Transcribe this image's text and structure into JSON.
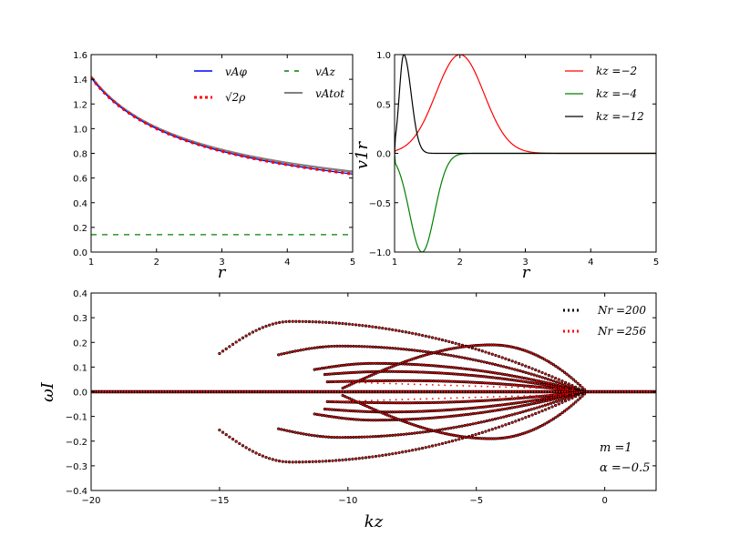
{
  "chart_data": [
    {
      "type": "line",
      "id": "top-left",
      "xlabel": "r",
      "ylabel": "",
      "xlim": [
        1,
        5
      ],
      "ylim": [
        0.0,
        1.6
      ],
      "xticks": [
        "1",
        "2",
        "3",
        "4",
        "5"
      ],
      "yticks": [
        "0.0",
        "0.2",
        "0.4",
        "0.6",
        "0.8",
        "1.0",
        "1.2",
        "1.4",
        "1.6"
      ],
      "legend_position": "top-right",
      "series": [
        {
          "name": "v_{Aφ}",
          "label": "vAφ",
          "color": "#0000ff",
          "style": "solid",
          "x": [
            1.0,
            1.25,
            1.5,
            2.0,
            2.5,
            3.0,
            3.5,
            4.0,
            4.5,
            5.0
          ],
          "y": [
            1.414,
            1.265,
            1.155,
            1.0,
            0.894,
            0.816,
            0.756,
            0.707,
            0.667,
            0.632
          ]
        },
        {
          "name": "sqrt(2ρ)",
          "label": "√2ρ",
          "color": "#ff0000",
          "style": "dotted",
          "x": [
            1.0,
            1.25,
            1.5,
            2.0,
            2.5,
            3.0,
            3.5,
            4.0,
            4.5,
            5.0
          ],
          "y": [
            1.414,
            1.265,
            1.155,
            1.0,
            0.894,
            0.816,
            0.756,
            0.707,
            0.667,
            0.632
          ]
        },
        {
          "name": "v_{Az}",
          "label": "vAz",
          "color": "#008000",
          "style": "dashed",
          "x": [
            1.0,
            5.0
          ],
          "y": [
            0.141,
            0.141
          ]
        },
        {
          "name": "v_{Atot}",
          "label": "vAtot",
          "color": "#808080",
          "style": "solid",
          "x": [
            1.0,
            1.25,
            1.5,
            2.0,
            2.5,
            3.0,
            3.5,
            4.0,
            4.5,
            5.0
          ],
          "y": [
            1.421,
            1.273,
            1.163,
            1.01,
            0.905,
            0.829,
            0.769,
            0.721,
            0.682,
            0.648
          ]
        }
      ]
    },
    {
      "type": "line",
      "id": "top-right",
      "xlabel": "r",
      "ylabel": "v1r",
      "xlim": [
        1,
        5
      ],
      "ylim": [
        -1.0,
        1.0
      ],
      "xticks": [
        "1",
        "2",
        "3",
        "4",
        "5"
      ],
      "yticks": [
        "−1.0",
        "−0.5",
        "0.0",
        "0.5",
        "1.0"
      ],
      "legend_position": "top-right",
      "series": [
        {
          "name": "k_z = −2",
          "label": "kz =−2",
          "color": "#ff0000",
          "peak_r": 2.0,
          "amplitude": 1.0
        },
        {
          "name": "k_z = −4",
          "label": "kz =−4",
          "color": "#008000",
          "peak_r": 1.42,
          "amplitude": -1.0
        },
        {
          "name": "k_z = −12",
          "label": "kz =−12",
          "color": "#000000",
          "peak_r": 1.15,
          "amplitude": 1.0
        }
      ]
    },
    {
      "type": "scatter",
      "id": "bottom",
      "xlabel": "kz",
      "ylabel": "ωI",
      "xlim": [
        -20,
        2
      ],
      "ylim": [
        -0.4,
        0.4
      ],
      "xticks": [
        "−20",
        "−15",
        "−10",
        "−5",
        "0"
      ],
      "yticks": [
        "−0.4",
        "−0.3",
        "−0.2",
        "−0.1",
        "0.0",
        "0.1",
        "0.2",
        "0.3",
        "0.4"
      ],
      "legend_position": "top-right",
      "series": [
        {
          "name": "N_r = 200",
          "label": "Nr =200",
          "color": "#000000"
        },
        {
          "name": "N_r = 256",
          "label": "Nr =256",
          "color": "#ff0000"
        }
      ],
      "branches": [
        {
          "k0": -15.0,
          "k1": -0.75,
          "peak_k": -12.2,
          "peak": 0.285,
          "start": 0.155
        },
        {
          "k0": -12.7,
          "k1": -0.8,
          "peak_k": -10.3,
          "peak": 0.185,
          "start": 0.15
        },
        {
          "k0": -11.3,
          "k1": -0.85,
          "peak_k": -9.0,
          "peak": 0.115,
          "start": 0.09
        },
        {
          "k0": -10.9,
          "k1": -0.9,
          "peak_k": -8.5,
          "peak": 0.082,
          "start": 0.07
        },
        {
          "k0": -10.8,
          "k1": -0.9,
          "peak_k": -7.8,
          "peak": 0.045,
          "start": 0.04
        },
        {
          "k0": -10.2,
          "k1": -0.7,
          "peak_k": -4.4,
          "peak": 0.19,
          "start": 0.015
        }
      ],
      "annotations": [
        "m =1",
        "α =−0.5"
      ]
    }
  ]
}
